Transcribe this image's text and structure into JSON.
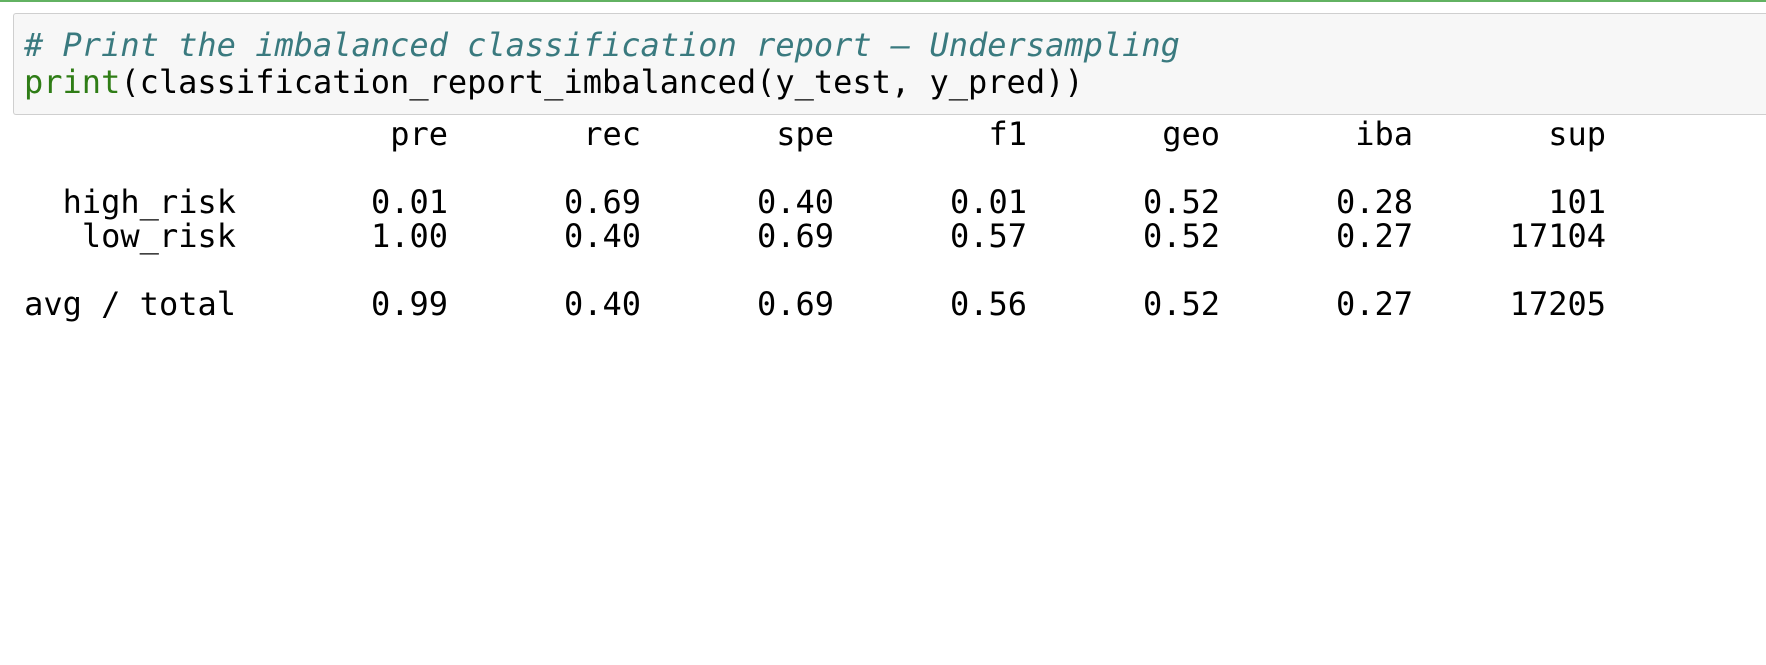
{
  "code_cell": {
    "comment": "# Print the imbalanced classification report — Undersampling",
    "builtin": "print",
    "call_rest": "(classification_report_imbalanced(y_test, y_pred))"
  },
  "report": {
    "headers": [
      "pre",
      "rec",
      "spe",
      "f1",
      "geo",
      "iba",
      "sup"
    ],
    "rows": [
      {
        "label": "high_risk",
        "values": [
          "0.01",
          "0.69",
          "0.40",
          "0.01",
          "0.52",
          "0.28",
          "101"
        ]
      },
      {
        "label": "low_risk",
        "values": [
          "1.00",
          "0.40",
          "0.69",
          "0.57",
          "0.52",
          "0.27",
          "17104"
        ]
      }
    ],
    "total": {
      "label": "avg / total",
      "values": [
        "0.99",
        "0.40",
        "0.69",
        "0.56",
        "0.52",
        "0.27",
        "17205"
      ]
    }
  },
  "colors": {
    "cell_background": "#f7f7f7",
    "cell_border": "#cfcfcf",
    "comment": "#3a7a7f",
    "builtin": "#2f7d16",
    "top_rule": "#62b262"
  }
}
